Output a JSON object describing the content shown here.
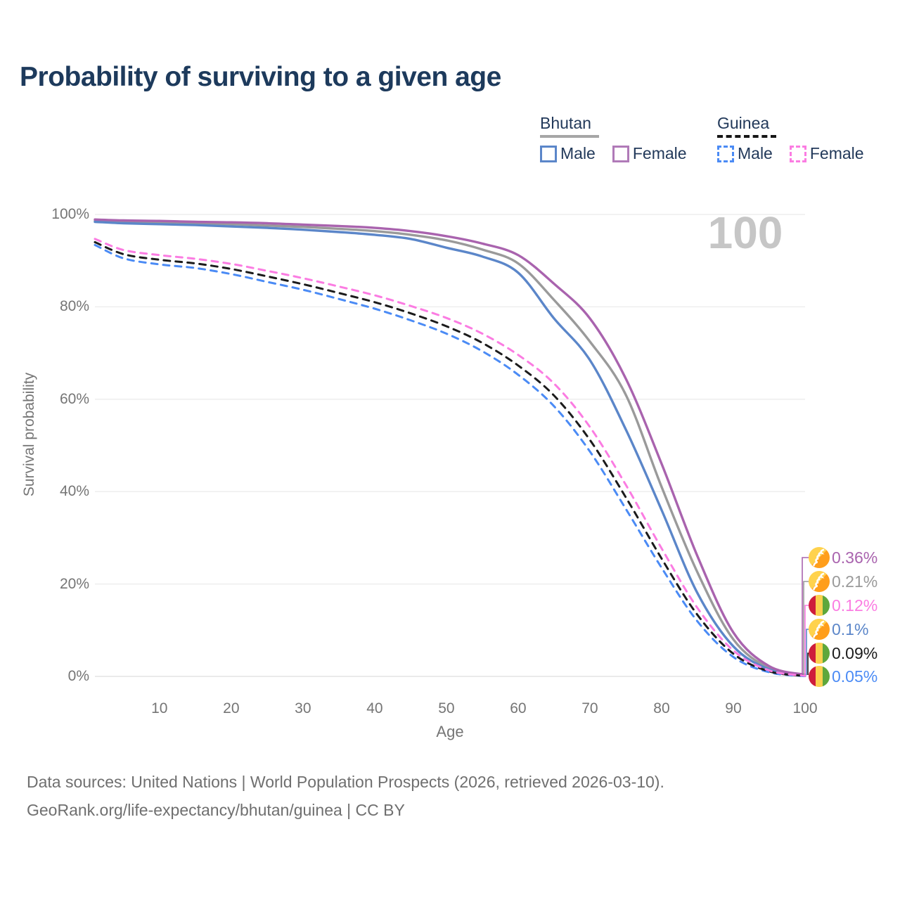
{
  "title": "Probability of surviving to a given age",
  "legend": {
    "groups": [
      {
        "name": "Bhutan",
        "line_style": "solid",
        "items": [
          {
            "label": "Male",
            "color": "#5b86c9"
          },
          {
            "label": "Female",
            "color": "#b07ab8"
          }
        ]
      },
      {
        "name": "Guinea",
        "line_style": "dashed",
        "items": [
          {
            "label": "Male",
            "color": "#4b8bf5"
          },
          {
            "label": "Female",
            "color": "#fb7ce2"
          }
        ]
      }
    ]
  },
  "chart_data": {
    "type": "line",
    "title": "Probability of surviving to a given age",
    "xlabel": "Age",
    "ylabel": "Survival probability",
    "xlim": [
      1,
      100
    ],
    "ylim": [
      0,
      100
    ],
    "grid": "horizontal",
    "watermark": "100",
    "x_ticks": [
      10,
      20,
      30,
      40,
      50,
      60,
      70,
      80,
      90,
      100
    ],
    "y_ticks": [
      {
        "value": 100,
        "label": "100%"
      },
      {
        "value": 80,
        "label": "80%"
      },
      {
        "value": 60,
        "label": "60%"
      },
      {
        "value": 40,
        "label": "40%"
      },
      {
        "value": 20,
        "label": "20%"
      },
      {
        "value": 0,
        "label": "0%"
      }
    ],
    "x": [
      1,
      5,
      10,
      15,
      20,
      25,
      30,
      35,
      40,
      45,
      50,
      55,
      60,
      65,
      70,
      75,
      80,
      85,
      90,
      95,
      100
    ],
    "series": [
      {
        "name": "Bhutan Female",
        "country": "Bhutan",
        "sex": "Female",
        "color": "#a963ae",
        "dash": "solid",
        "values": [
          98.9,
          98.7,
          98.6,
          98.4,
          98.3,
          98.1,
          97.8,
          97.5,
          97.1,
          96.4,
          95.3,
          93.7,
          91.2,
          85.0,
          77.5,
          64.5,
          46.0,
          26.0,
          9.5,
          2.2,
          0.36
        ],
        "end_label": "0.36%"
      },
      {
        "name": "Bhutan Both sexes",
        "country": "Bhutan",
        "sex": "Both",
        "color": "#9a9a9a",
        "dash": "solid",
        "values": [
          98.6,
          98.4,
          98.2,
          98.1,
          97.9,
          97.6,
          97.3,
          96.9,
          96.4,
          95.6,
          94.4,
          92.4,
          89.4,
          81.5,
          72.5,
          61.0,
          41.0,
          22.5,
          8.0,
          1.8,
          0.21
        ],
        "end_label": "0.21%"
      },
      {
        "name": "Bhutan Male",
        "country": "Bhutan",
        "sex": "Male",
        "color": "#5b86c9",
        "dash": "solid",
        "values": [
          98.4,
          98.1,
          97.9,
          97.7,
          97.4,
          97.1,
          96.7,
          96.2,
          95.6,
          94.7,
          92.8,
          90.9,
          87.4,
          77.5,
          68.5,
          53.5,
          36.0,
          18.0,
          6.5,
          1.5,
          0.1
        ],
        "end_label": "0.1%"
      },
      {
        "name": "Guinea Female",
        "country": "Guinea",
        "sex": "Female",
        "color": "#fb7ce2",
        "dash": "dashed",
        "values": [
          94.7,
          92.3,
          91.2,
          90.4,
          89.3,
          87.8,
          86.2,
          84.4,
          82.5,
          80.2,
          77.6,
          74.2,
          69.6,
          63.4,
          54.0,
          41.5,
          27.7,
          14.8,
          5.6,
          1.3,
          0.12
        ],
        "end_label": "0.12%"
      },
      {
        "name": "Guinea Both sexes",
        "country": "Guinea",
        "sex": "Both",
        "color": "#1b1b1b",
        "dash": "dashed",
        "values": [
          94.0,
          91.4,
          90.2,
          89.4,
          88.2,
          86.6,
          84.9,
          83.0,
          81.0,
          78.6,
          75.8,
          72.2,
          67.3,
          60.8,
          51.2,
          38.8,
          25.5,
          13.3,
          4.9,
          1.1,
          0.09
        ],
        "end_label": "0.09%"
      },
      {
        "name": "Guinea Male",
        "country": "Guinea",
        "sex": "Male",
        "color": "#4b8bf5",
        "dash": "dashed",
        "values": [
          93.4,
          90.5,
          89.2,
          88.4,
          87.1,
          85.4,
          83.7,
          81.7,
          79.6,
          77.1,
          74.2,
          70.4,
          65.3,
          58.5,
          48.7,
          36.3,
          23.5,
          11.9,
          4.2,
          0.9,
          0.05
        ],
        "end_label": "0.05%"
      }
    ],
    "end_labels": [
      {
        "text": "0.36%",
        "color": "#a963ae",
        "flag": "bhutan"
      },
      {
        "text": "0.21%",
        "color": "#9a9a9a",
        "flag": "bhutan"
      },
      {
        "text": "0.12%",
        "color": "#fb7ce2",
        "flag": "guinea"
      },
      {
        "text": "0.1%",
        "color": "#5b86c9",
        "flag": "bhutan"
      },
      {
        "text": "0.09%",
        "color": "#1b1b1b",
        "flag": "guinea"
      },
      {
        "text": "0.05%",
        "color": "#4b8bf5",
        "flag": "guinea"
      }
    ],
    "legend_position": "top-right"
  },
  "footer": {
    "line1": "Data sources: United Nations | World Population Prospects (2026, retrieved 2026-03-10).",
    "line2": "GeoRank.org/life-expectancy/bhutan/guinea | CC BY"
  }
}
